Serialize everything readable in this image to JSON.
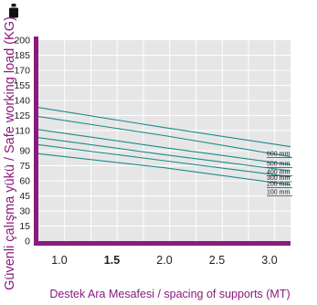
{
  "chart_data": {
    "type": "line",
    "xlabel": "Destek Ara Mesafesi / spacing of supports (MT)",
    "ylabel": "Güvenli çalışma yükü / Safe working load (KG)",
    "xlim": [
      0.8,
      3.2
    ],
    "ylim": [
      0,
      200
    ],
    "x_ticks": [
      {
        "value": 1.0,
        "label": "1.0",
        "bold": false
      },
      {
        "value": 1.5,
        "label": "1.5",
        "bold": true
      },
      {
        "value": 2.0,
        "label": "2.0",
        "bold": false
      },
      {
        "value": 2.5,
        "label": "2.5",
        "bold": false
      },
      {
        "value": 3.0,
        "label": "3.0",
        "bold": false
      }
    ],
    "y_ticks": [
      {
        "value": 0,
        "label": "0"
      },
      {
        "value": 15,
        "label": "15"
      },
      {
        "value": 30,
        "label": "30"
      },
      {
        "value": 45,
        "label": "45"
      },
      {
        "value": 60,
        "label": "60"
      },
      {
        "value": 75,
        "label": "75"
      },
      {
        "value": 90,
        "label": "90"
      },
      {
        "value": 110,
        "label": "110"
      },
      {
        "value": 125,
        "label": "125"
      },
      {
        "value": 140,
        "label": "140"
      },
      {
        "value": 155,
        "label": "155"
      },
      {
        "value": 170,
        "label": "170"
      },
      {
        "value": 185,
        "label": "185"
      },
      {
        "value": 200,
        "label": "200"
      }
    ],
    "series": [
      {
        "name": "600 mm",
        "points": [
          [
            0.8,
            133
          ],
          [
            2.0,
            113
          ],
          [
            3.2,
            94
          ]
        ]
      },
      {
        "name": "500 mm",
        "points": [
          [
            0.8,
            124
          ],
          [
            2.0,
            105
          ],
          [
            3.2,
            84
          ]
        ]
      },
      {
        "name": "400 mm",
        "points": [
          [
            0.8,
            111
          ],
          [
            2.0,
            93
          ],
          [
            3.2,
            76
          ]
        ]
      },
      {
        "name": "300 mm",
        "points": [
          [
            0.8,
            103
          ],
          [
            2.0,
            86
          ],
          [
            3.2,
            70
          ]
        ]
      },
      {
        "name": "200 mm",
        "points": [
          [
            0.8,
            96
          ],
          [
            2.0,
            80
          ],
          [
            3.2,
            64
          ]
        ]
      },
      {
        "name": "100 mm",
        "points": [
          [
            0.8,
            87
          ],
          [
            2.0,
            73
          ],
          [
            3.2,
            56
          ]
        ]
      }
    ],
    "grid": true,
    "icon": "weight-icon",
    "colors": {
      "axis": "#8a1a7e",
      "series": "#1e8a8a",
      "plot_bg": "#e6e6e6",
      "grid": "#ffffff",
      "text": "#222222"
    }
  }
}
